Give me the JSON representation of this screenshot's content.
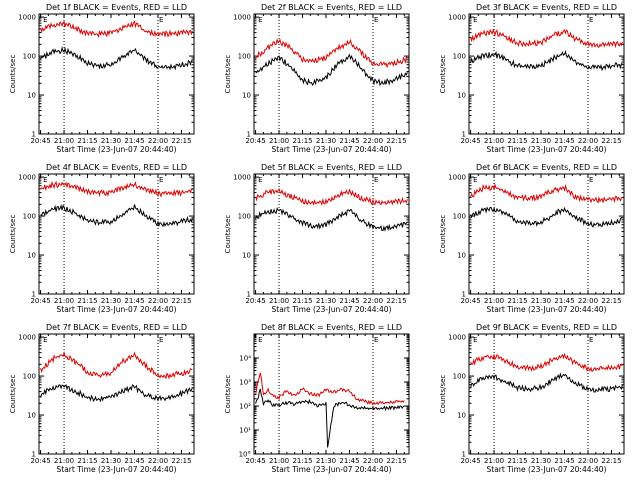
{
  "figure": {
    "background": "#ffffff",
    "colors": {
      "events": "#000000",
      "lld": "#e00000",
      "axis": "#000000"
    }
  },
  "chart_data": [
    {
      "type": "line",
      "title": "Det 1f BLACK = Events, RED = LLD",
      "xlabel": "Start Time (23-Jun-07 20:44:40)",
      "ylabel": "Counts/sec",
      "x_tick_labels": [
        "20:45",
        "21:00",
        "21:15",
        "21:30",
        "21:45",
        "22:00",
        "22:15"
      ],
      "y_tick_labels": [
        "1",
        "10",
        "100",
        "1000"
      ],
      "yscale": "log",
      "ylim": [
        1,
        1200
      ],
      "xlim": [
        "20:44",
        "22:23"
      ],
      "markers": [
        {
          "label": "E",
          "x": "20:46"
        },
        {
          "label": "E",
          "x": "22:00"
        }
      ],
      "vlines": [
        "21:00",
        "22:00"
      ],
      "series": [
        {
          "name": "Events",
          "color": "#000000",
          "x": [
            "20:45",
            "20:53",
            "21:00",
            "21:07",
            "21:15",
            "21:22",
            "21:30",
            "21:37",
            "21:45",
            "21:52",
            "22:00",
            "22:07",
            "22:15",
            "22:22"
          ],
          "values": [
            95,
            135,
            155,
            115,
            72,
            60,
            65,
            100,
            160,
            90,
            58,
            55,
            65,
            75
          ]
        },
        {
          "name": "LLD",
          "color": "#e00000",
          "x": [
            "20:45",
            "20:53",
            "21:00",
            "21:07",
            "21:15",
            "21:22",
            "21:30",
            "21:37",
            "21:45",
            "21:52",
            "22:00",
            "22:07",
            "22:15",
            "22:22"
          ],
          "values": [
            500,
            680,
            720,
            560,
            420,
            400,
            420,
            560,
            720,
            480,
            400,
            400,
            420,
            450
          ]
        }
      ]
    },
    {
      "type": "line",
      "title": "Det 2f BLACK = Events, RED = LLD",
      "xlabel": "Start Time (23-Jun-07 20:44:40)",
      "ylabel": "Counts/sec",
      "x_tick_labels": [
        "20:45",
        "21:00",
        "21:15",
        "21:30",
        "21:45",
        "22:00",
        "22:15"
      ],
      "y_tick_labels": [
        "1",
        "10",
        "100",
        "1000"
      ],
      "yscale": "log",
      "ylim": [
        1,
        1200
      ],
      "xlim": [
        "20:44",
        "22:23"
      ],
      "markers": [
        {
          "label": "E",
          "x": "20:46"
        },
        {
          "label": "E",
          "x": "22:00"
        }
      ],
      "vlines": [
        "21:00",
        "22:00"
      ],
      "series": [
        {
          "name": "Events",
          "color": "#000000",
          "x": [
            "20:45",
            "20:53",
            "21:00",
            "21:07",
            "21:15",
            "21:22",
            "21:30",
            "21:37",
            "21:45",
            "21:52",
            "22:00",
            "22:07",
            "22:15",
            "22:22"
          ],
          "values": [
            40,
            70,
            100,
            60,
            25,
            22,
            30,
            65,
            110,
            55,
            25,
            22,
            28,
            38
          ]
        },
        {
          "name": "LLD",
          "color": "#e00000",
          "x": [
            "20:45",
            "20:53",
            "21:00",
            "21:07",
            "21:15",
            "21:22",
            "21:30",
            "21:37",
            "21:45",
            "21:52",
            "22:00",
            "22:07",
            "22:15",
            "22:22"
          ],
          "values": [
            100,
            180,
            260,
            180,
            90,
            80,
            100,
            170,
            250,
            140,
            70,
            65,
            75,
            90
          ]
        }
      ]
    },
    {
      "type": "line",
      "title": "Det 3f BLACK = Events, RED = LLD",
      "xlabel": "Start Time (23-Jun-07 20:44:40)",
      "ylabel": "Counts/sec",
      "x_tick_labels": [
        "20:45",
        "21:00",
        "21:15",
        "21:30",
        "21:45",
        "22:00",
        "22:15"
      ],
      "y_tick_labels": [
        "1",
        "10",
        "100",
        "1000"
      ],
      "yscale": "log",
      "ylim": [
        1,
        1200
      ],
      "xlim": [
        "20:44",
        "22:23"
      ],
      "markers": [
        {
          "label": "E",
          "x": "20:46"
        },
        {
          "label": "E",
          "x": "22:00"
        }
      ],
      "vlines": [
        "21:00",
        "22:00"
      ],
      "series": [
        {
          "name": "Events",
          "color": "#000000",
          "x": [
            "20:45",
            "20:53",
            "21:00",
            "21:07",
            "21:15",
            "21:22",
            "21:30",
            "21:37",
            "21:45",
            "21:52",
            "22:00",
            "22:07",
            "22:15",
            "22:22"
          ],
          "values": [
            80,
            110,
            120,
            90,
            60,
            55,
            60,
            90,
            130,
            75,
            55,
            55,
            60,
            65
          ]
        },
        {
          "name": "LLD",
          "color": "#e00000",
          "x": [
            "20:45",
            "20:53",
            "21:00",
            "21:07",
            "21:15",
            "21:22",
            "21:30",
            "21:37",
            "21:45",
            "21:52",
            "22:00",
            "22:07",
            "22:15",
            "22:22"
          ],
          "values": [
            300,
            420,
            450,
            350,
            230,
            220,
            240,
            360,
            460,
            300,
            220,
            210,
            220,
            230
          ]
        }
      ]
    },
    {
      "type": "line",
      "title": "Det 4f BLACK = Events, RED = LLD",
      "xlabel": "Start Time (23-Jun-07 20:44:40)",
      "ylabel": "Counts/sec",
      "x_tick_labels": [
        "20:45",
        "21:00",
        "21:15",
        "21:30",
        "21:45",
        "22:00",
        "22:15"
      ],
      "y_tick_labels": [
        "1",
        "10",
        "100",
        "1000"
      ],
      "yscale": "log",
      "ylim": [
        1,
        1200
      ],
      "xlim": [
        "20:44",
        "22:23"
      ],
      "markers": [
        {
          "label": "E",
          "x": "20:46"
        },
        {
          "label": "E",
          "x": "22:00"
        }
      ],
      "vlines": [
        "21:00",
        "22:00"
      ],
      "series": [
        {
          "name": "Events",
          "color": "#000000",
          "x": [
            "20:45",
            "20:53",
            "21:00",
            "21:07",
            "21:15",
            "21:22",
            "21:30",
            "21:37",
            "21:45",
            "21:52",
            "22:00",
            "22:07",
            "22:15",
            "22:22"
          ],
          "values": [
            110,
            160,
            175,
            130,
            85,
            72,
            78,
            120,
            190,
            110,
            70,
            68,
            78,
            90
          ]
        },
        {
          "name": "LLD",
          "color": "#e00000",
          "x": [
            "20:45",
            "20:53",
            "21:00",
            "21:07",
            "21:15",
            "21:22",
            "21:30",
            "21:37",
            "21:45",
            "21:52",
            "22:00",
            "22:07",
            "22:15",
            "22:22"
          ],
          "values": [
            550,
            680,
            700,
            580,
            450,
            420,
            440,
            560,
            700,
            500,
            410,
            400,
            430,
            460
          ]
        }
      ]
    },
    {
      "type": "line",
      "title": "Det 5f BLACK = Events, RED = LLD",
      "xlabel": "Start Time (23-Jun-07 20:44:40)",
      "ylabel": "Counts/sec",
      "x_tick_labels": [
        "20:45",
        "21:00",
        "21:15",
        "21:30",
        "21:45",
        "22:00",
        "22:15"
      ],
      "y_tick_labels": [
        "1",
        "10",
        "100",
        "1000"
      ],
      "yscale": "log",
      "ylim": [
        1,
        1200
      ],
      "xlim": [
        "20:44",
        "22:23"
      ],
      "markers": [
        {
          "label": "E",
          "x": "20:46"
        },
        {
          "label": "E",
          "x": "22:00"
        }
      ],
      "vlines": [
        "21:00",
        "22:00"
      ],
      "series": [
        {
          "name": "Events",
          "color": "#000000",
          "x": [
            "20:45",
            "20:53",
            "21:00",
            "21:07",
            "21:15",
            "21:22",
            "21:30",
            "21:37",
            "21:45",
            "21:52",
            "22:00",
            "22:07",
            "22:15",
            "22:22"
          ],
          "values": [
            100,
            140,
            150,
            110,
            70,
            60,
            65,
            100,
            150,
            85,
            55,
            52,
            58,
            70
          ]
        },
        {
          "name": "LLD",
          "color": "#e00000",
          "x": [
            "20:45",
            "20:53",
            "21:00",
            "21:07",
            "21:15",
            "21:22",
            "21:30",
            "21:37",
            "21:45",
            "21:52",
            "22:00",
            "22:07",
            "22:15",
            "22:22"
          ],
          "values": [
            320,
            440,
            460,
            360,
            260,
            240,
            260,
            360,
            470,
            320,
            250,
            240,
            250,
            270
          ]
        }
      ]
    },
    {
      "type": "line",
      "title": "Det 6f BLACK = Events, RED = LLD",
      "xlabel": "Start Time (23-Jun-07 20:44:40)",
      "ylabel": "Counts/sec",
      "x_tick_labels": [
        "20:45",
        "21:00",
        "21:15",
        "21:30",
        "21:45",
        "22:00",
        "22:15"
      ],
      "y_tick_labels": [
        "1",
        "10",
        "100",
        "1000"
      ],
      "yscale": "log",
      "ylim": [
        1,
        1200
      ],
      "xlim": [
        "20:44",
        "22:23"
      ],
      "markers": [
        {
          "label": "E",
          "x": "20:46"
        },
        {
          "label": "E",
          "x": "22:00"
        }
      ],
      "vlines": [
        "21:00",
        "22:00"
      ],
      "series": [
        {
          "name": "Events",
          "color": "#000000",
          "x": [
            "20:45",
            "20:53",
            "21:00",
            "21:07",
            "21:15",
            "21:22",
            "21:30",
            "21:37",
            "21:45",
            "21:52",
            "22:00",
            "22:07",
            "22:15",
            "22:22"
          ],
          "values": [
            110,
            150,
            165,
            125,
            82,
            70,
            75,
            110,
            170,
            100,
            68,
            65,
            72,
            90
          ]
        },
        {
          "name": "LLD",
          "color": "#e00000",
          "x": [
            "20:45",
            "20:53",
            "21:00",
            "21:07",
            "21:15",
            "21:22",
            "21:30",
            "21:37",
            "21:45",
            "21:52",
            "22:00",
            "22:07",
            "22:15",
            "22:22"
          ],
          "values": [
            350,
            560,
            600,
            450,
            330,
            310,
            340,
            480,
            580,
            330,
            290,
            280,
            290,
            310
          ]
        }
      ]
    },
    {
      "type": "line",
      "title": "Det 7f BLACK = Events, RED = LLD",
      "xlabel": "Start Time (23-Jun-07 20:44:40)",
      "ylabel": "Counts/sec",
      "x_tick_labels": [
        "20:45",
        "21:00",
        "21:15",
        "21:30",
        "21:45",
        "22:00",
        "22:15"
      ],
      "y_tick_labels": [
        "1",
        "10",
        "100",
        "1000"
      ],
      "yscale": "log",
      "ylim": [
        1,
        1200
      ],
      "xlim": [
        "20:44",
        "22:23"
      ],
      "markers": [
        {
          "label": "E",
          "x": "20:46"
        },
        {
          "label": "E",
          "x": "22:00"
        }
      ],
      "vlines": [
        "21:00",
        "22:00"
      ],
      "series": [
        {
          "name": "Events",
          "color": "#000000",
          "x": [
            "20:45",
            "20:53",
            "21:00",
            "21:07",
            "21:15",
            "21:22",
            "21:30",
            "21:37",
            "21:45",
            "21:52",
            "22:00",
            "22:07",
            "22:15",
            "22:22"
          ],
          "values": [
            35,
            55,
            60,
            45,
            30,
            28,
            32,
            45,
            58,
            35,
            28,
            30,
            38,
            50
          ]
        },
        {
          "name": "LLD",
          "color": "#e00000",
          "x": [
            "20:45",
            "20:53",
            "21:00",
            "21:07",
            "21:15",
            "21:22",
            "21:30",
            "21:37",
            "21:45",
            "21:52",
            "22:00",
            "22:07",
            "22:15",
            "22:22"
          ],
          "values": [
            150,
            300,
            380,
            250,
            140,
            110,
            130,
            250,
            380,
            200,
            110,
            110,
            130,
            150
          ]
        }
      ]
    },
    {
      "type": "line",
      "title": "Det 8f BLACK = Events, RED = LLD",
      "xlabel": "Start Time (23-Jun-07 20:44:40)",
      "ylabel": "Counts/sec",
      "x_tick_labels": [
        "20:45",
        "21:00",
        "21:15",
        "21:30",
        "21:45",
        "22:00",
        "22:15"
      ],
      "y_tick_labels": [
        "10°",
        "10¹",
        "10²",
        "10³",
        "10⁴"
      ],
      "yscale": "log",
      "ylim": [
        1,
        100000
      ],
      "xlim": [
        "20:44",
        "22:23"
      ],
      "markers": [
        {
          "label": "E",
          "x": "20:46"
        },
        {
          "label": "E",
          "x": "22:00"
        }
      ],
      "vlines": [
        "21:00",
        "22:00"
      ],
      "series": [
        {
          "name": "Events",
          "color": "#000000",
          "x": [
            "20:45",
            "20:48",
            "20:50",
            "20:53",
            "20:56",
            "21:00",
            "21:05",
            "21:10",
            "21:15",
            "21:20",
            "21:25",
            "21:30",
            "21:31",
            "21:35",
            "21:40",
            "21:45",
            "21:50",
            "22:00",
            "22:10",
            "22:20"
          ],
          "values": [
            120,
            500,
            140,
            200,
            110,
            120,
            150,
            130,
            170,
            160,
            110,
            140,
            2,
            110,
            150,
            120,
            90,
            85,
            90,
            95
          ]
        },
        {
          "name": "LLD",
          "color": "#e00000",
          "x": [
            "20:45",
            "20:48",
            "20:50",
            "20:53",
            "20:56",
            "21:00",
            "21:05",
            "21:10",
            "21:15",
            "21:20",
            "21:25",
            "21:30",
            "21:35",
            "21:40",
            "21:45",
            "21:50",
            "22:00",
            "22:10",
            "22:20"
          ],
          "values": [
            350,
            3000,
            300,
            500,
            280,
            250,
            450,
            300,
            550,
            350,
            300,
            500,
            400,
            550,
            450,
            200,
            140,
            150,
            170
          ]
        }
      ]
    },
    {
      "type": "line",
      "title": "Det 9f BLACK = Events, RED = LLD",
      "xlabel": "Start Time (23-Jun-07 20:44:40)",
      "ylabel": "Counts/sec",
      "x_tick_labels": [
        "20:45",
        "21:00",
        "21:15",
        "21:30",
        "21:45",
        "22:00",
        "22:15"
      ],
      "y_tick_labels": [
        "1",
        "10",
        "100",
        "1000"
      ],
      "yscale": "log",
      "ylim": [
        1,
        1200
      ],
      "xlim": [
        "20:44",
        "22:23"
      ],
      "markers": [
        {
          "label": "E",
          "x": "20:46"
        },
        {
          "label": "E",
          "x": "22:00"
        }
      ],
      "vlines": [
        "21:00",
        "22:00"
      ],
      "series": [
        {
          "name": "Events",
          "color": "#000000",
          "x": [
            "20:45",
            "20:53",
            "21:00",
            "21:07",
            "21:15",
            "21:22",
            "21:30",
            "21:37",
            "21:45",
            "21:52",
            "22:00",
            "22:07",
            "22:15",
            "22:22"
          ],
          "values": [
            60,
            95,
            105,
            80,
            55,
            50,
            55,
            85,
            120,
            70,
            50,
            48,
            52,
            60
          ]
        },
        {
          "name": "LLD",
          "color": "#e00000",
          "x": [
            "20:45",
            "20:53",
            "21:00",
            "21:07",
            "21:15",
            "21:22",
            "21:30",
            "21:37",
            "21:45",
            "21:52",
            "22:00",
            "22:07",
            "22:15",
            "22:22"
          ],
          "values": [
            220,
            330,
            350,
            270,
            180,
            170,
            190,
            280,
            360,
            230,
            170,
            165,
            175,
            190
          ]
        }
      ]
    }
  ]
}
